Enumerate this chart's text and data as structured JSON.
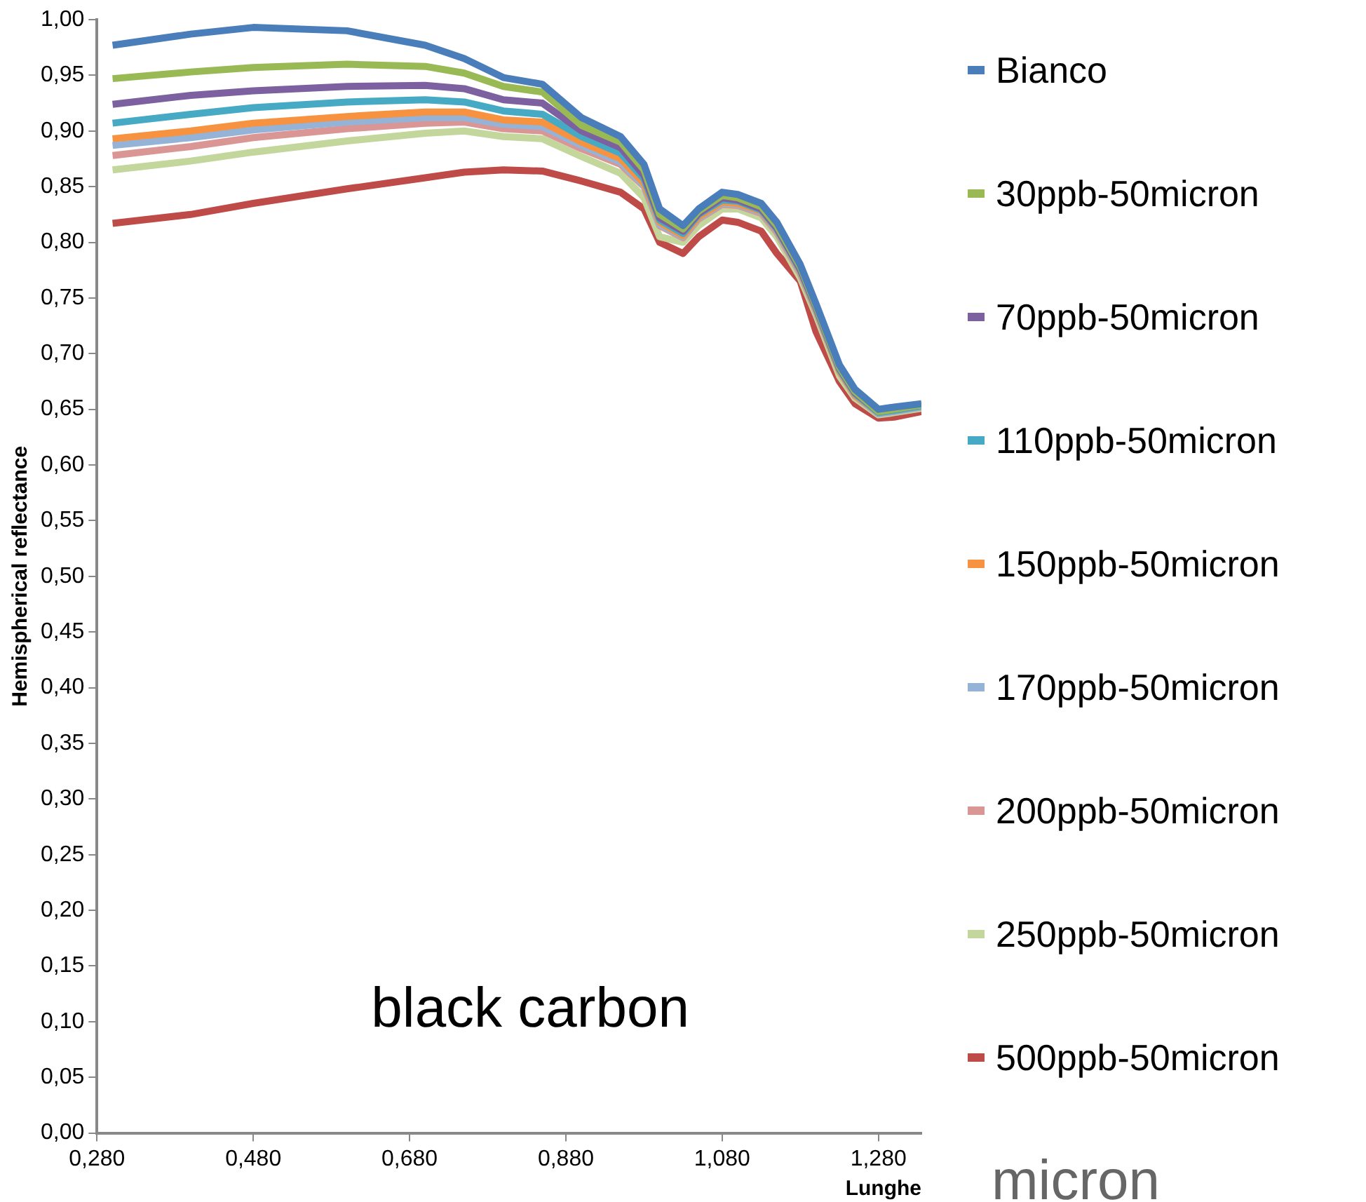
{
  "chart_data": {
    "type": "line",
    "xlabel": "Lunghe",
    "ylabel": "Hemispherical reflectance",
    "annotations": [
      "black carbon",
      "micron"
    ],
    "x": [
      0.3,
      0.4,
      0.48,
      0.6,
      0.7,
      0.75,
      0.8,
      0.85,
      0.9,
      0.95,
      0.98,
      1.0,
      1.03,
      1.05,
      1.08,
      1.1,
      1.13,
      1.15,
      1.18,
      1.2,
      1.23,
      1.25,
      1.28,
      1.3,
      1.335
    ],
    "series": [
      {
        "name": "Bianco",
        "color": "#4a7ebb",
        "values": [
          0.977,
          0.987,
          0.993,
          0.99,
          0.977,
          0.965,
          0.948,
          0.942,
          0.912,
          0.895,
          0.87,
          0.83,
          0.815,
          0.83,
          0.845,
          0.843,
          0.835,
          0.818,
          0.78,
          0.745,
          0.69,
          0.668,
          0.65,
          0.652,
          0.655
        ]
      },
      {
        "name": "30ppb-50micron",
        "color": "#98b954",
        "values": [
          0.947,
          0.953,
          0.957,
          0.96,
          0.958,
          0.952,
          0.94,
          0.935,
          0.905,
          0.89,
          0.865,
          0.825,
          0.812,
          0.828,
          0.842,
          0.84,
          0.832,
          0.815,
          0.778,
          0.743,
          0.688,
          0.666,
          0.648,
          0.65,
          0.654
        ]
      },
      {
        "name": "70ppb-50micron",
        "color": "#7d60a0",
        "values": [
          0.924,
          0.932,
          0.936,
          0.94,
          0.941,
          0.938,
          0.928,
          0.925,
          0.9,
          0.885,
          0.86,
          0.822,
          0.81,
          0.826,
          0.84,
          0.838,
          0.83,
          0.813,
          0.776,
          0.742,
          0.687,
          0.665,
          0.648,
          0.65,
          0.654
        ]
      },
      {
        "name": "110ppb-50micron",
        "color": "#46aac5",
        "values": [
          0.907,
          0.915,
          0.921,
          0.926,
          0.928,
          0.926,
          0.918,
          0.915,
          0.895,
          0.88,
          0.857,
          0.82,
          0.808,
          0.825,
          0.838,
          0.837,
          0.829,
          0.812,
          0.775,
          0.741,
          0.686,
          0.664,
          0.647,
          0.649,
          0.653
        ]
      },
      {
        "name": "150ppb-50micron",
        "color": "#f69240",
        "values": [
          0.893,
          0.9,
          0.907,
          0.913,
          0.917,
          0.917,
          0.91,
          0.908,
          0.89,
          0.875,
          0.853,
          0.818,
          0.806,
          0.823,
          0.836,
          0.835,
          0.828,
          0.811,
          0.774,
          0.74,
          0.685,
          0.663,
          0.647,
          0.649,
          0.653
        ]
      },
      {
        "name": "170ppb-50micron",
        "color": "#95b3d7",
        "values": [
          0.887,
          0.894,
          0.901,
          0.908,
          0.912,
          0.912,
          0.906,
          0.904,
          0.887,
          0.872,
          0.851,
          0.816,
          0.805,
          0.822,
          0.835,
          0.834,
          0.827,
          0.81,
          0.773,
          0.739,
          0.685,
          0.663,
          0.646,
          0.648,
          0.652
        ]
      },
      {
        "name": "200ppb-50micron",
        "color": "#d99694",
        "values": [
          0.878,
          0.886,
          0.894,
          0.902,
          0.907,
          0.908,
          0.902,
          0.9,
          0.884,
          0.87,
          0.85,
          0.815,
          0.804,
          0.821,
          0.834,
          0.833,
          0.826,
          0.809,
          0.772,
          0.738,
          0.684,
          0.662,
          0.646,
          0.648,
          0.652
        ]
      },
      {
        "name": "250ppb-50micron",
        "color": "#c3d69b",
        "values": [
          0.865,
          0.873,
          0.881,
          0.891,
          0.898,
          0.9,
          0.895,
          0.893,
          0.877,
          0.862,
          0.84,
          0.805,
          0.8,
          0.815,
          0.83,
          0.83,
          0.822,
          0.805,
          0.768,
          0.735,
          0.68,
          0.66,
          0.645,
          0.647,
          0.651
        ]
      },
      {
        "name": "500ppb-50micron",
        "color": "#be4b48",
        "values": [
          0.817,
          0.825,
          0.835,
          0.848,
          0.858,
          0.863,
          0.865,
          0.864,
          0.855,
          0.845,
          0.83,
          0.8,
          0.79,
          0.805,
          0.82,
          0.818,
          0.81,
          0.79,
          0.765,
          0.72,
          0.675,
          0.655,
          0.642,
          0.643,
          0.648
        ]
      }
    ],
    "xlim": [
      0.28,
      1.335
    ],
    "xticks": [
      {
        "value": 0.28,
        "label": "0,280"
      },
      {
        "value": 0.48,
        "label": "0,480"
      },
      {
        "value": 0.68,
        "label": "0,680"
      },
      {
        "value": 0.88,
        "label": "0,880"
      },
      {
        "value": 1.08,
        "label": "1,080"
      },
      {
        "value": 1.28,
        "label": "1,280"
      }
    ],
    "ylim": [
      0,
      1
    ],
    "yticks": [
      {
        "value": 0,
        "label": "0,00"
      },
      {
        "value": 0.05,
        "label": "0,05"
      },
      {
        "value": 0.1,
        "label": "0,10"
      },
      {
        "value": 0.15,
        "label": "0,15"
      },
      {
        "value": 0.2,
        "label": "0,20"
      },
      {
        "value": 0.25,
        "label": "0,25"
      },
      {
        "value": 0.3,
        "label": "0,30"
      },
      {
        "value": 0.35,
        "label": "0,35"
      },
      {
        "value": 0.4,
        "label": "0,40"
      },
      {
        "value": 0.45,
        "label": "0,45"
      },
      {
        "value": 0.5,
        "label": "0,50"
      },
      {
        "value": 0.55,
        "label": "0,55"
      },
      {
        "value": 0.6,
        "label": "0,60"
      },
      {
        "value": 0.65,
        "label": "0,65"
      },
      {
        "value": 0.7,
        "label": "0,70"
      },
      {
        "value": 0.75,
        "label": "0,75"
      },
      {
        "value": 0.8,
        "label": "0,80"
      },
      {
        "value": 0.85,
        "label": "0,85"
      },
      {
        "value": 0.9,
        "label": "0,90"
      },
      {
        "value": 0.95,
        "label": "0,95"
      },
      {
        "value": 1,
        "label": "1,00"
      }
    ],
    "grid": false,
    "legend": "right",
    "marker": "none",
    "line_style": "solid"
  }
}
